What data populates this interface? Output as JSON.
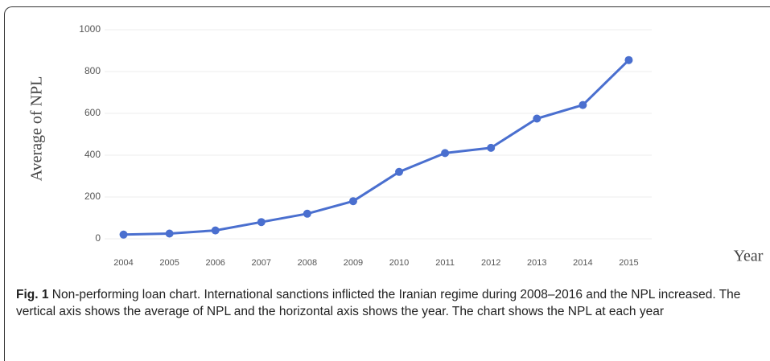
{
  "chart_data": {
    "type": "line",
    "y_label": "Average of NPL",
    "x_label": "Year",
    "categories": [
      "2004",
      "2005",
      "2006",
      "2007",
      "2008",
      "2009",
      "2010",
      "2011",
      "2012",
      "2013",
      "2014",
      "2015"
    ],
    "series": [
      {
        "name": "Average of NPL",
        "color": "#4a6fcf",
        "values": [
          20,
          25,
          40,
          80,
          120,
          180,
          320,
          410,
          435,
          575,
          640,
          855
        ]
      }
    ],
    "ylim": [
      0,
      1000
    ],
    "yticks": [
      0,
      200,
      400,
      600,
      800,
      1000
    ],
    "grid": true
  },
  "caption": {
    "label": "Fig. 1",
    "text": "Non-performing loan chart. International sanctions inflicted the Iranian regime during 2008–2016 and the NPL increased. The vertical axis shows the average of NPL and the horizontal axis shows the year. The chart shows the NPL at each year"
  }
}
